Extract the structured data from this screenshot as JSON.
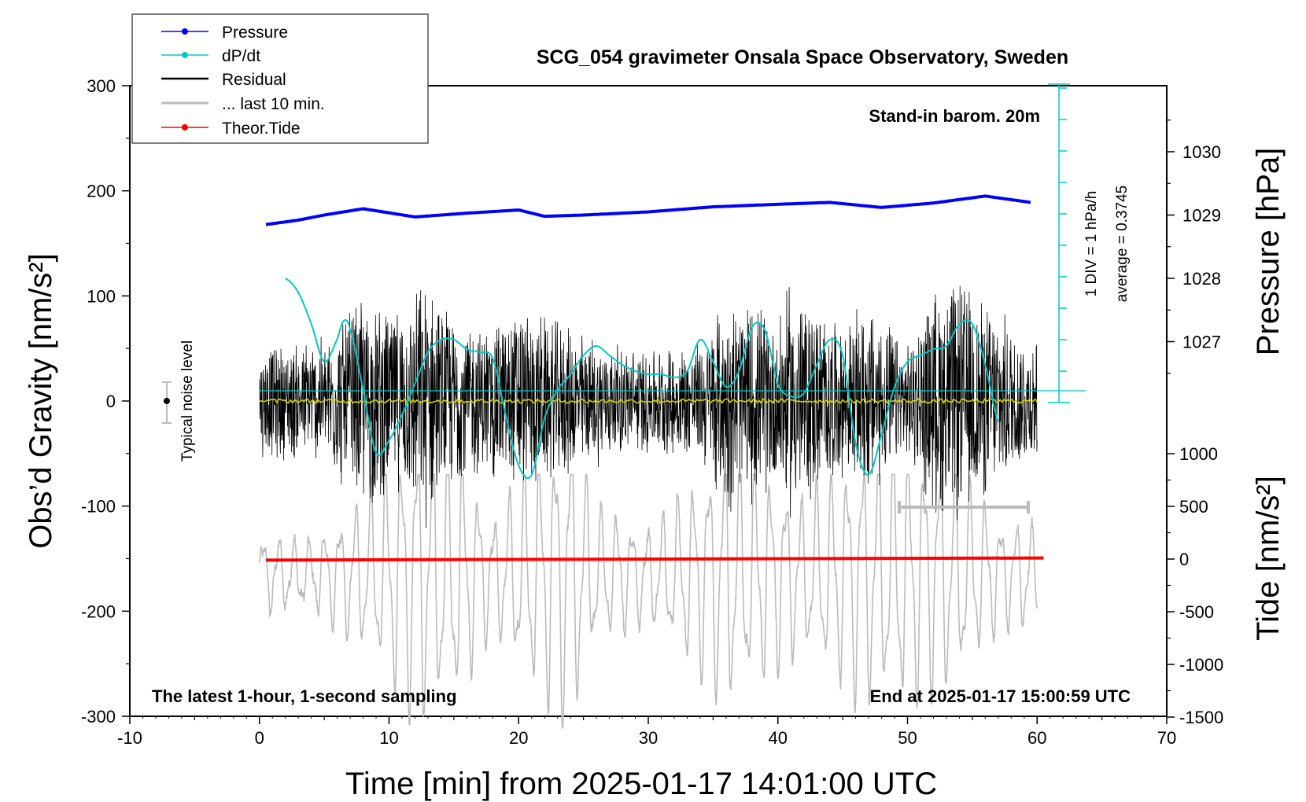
{
  "chart_data": {
    "type": "line",
    "title": "SCG_054 gravimeter Onsala Space Observatory, Sweden",
    "xlabel": "Time [min] from 2025-01-17 14:01:00 UTC",
    "ylabel_left": "Obs’d Gravity [nm/s²]",
    "ylabel_right_top": "Pressure [hPa]",
    "ylabel_right_bottom": "Tide [nm/s²]",
    "xlim": [
      -10,
      70
    ],
    "ylim_left": [
      -300,
      300
    ],
    "x_ticks": [
      "-10",
      "0",
      "10",
      "20",
      "30",
      "40",
      "50",
      "60",
      "70"
    ],
    "y_left_ticks": [
      "300",
      "200",
      "100",
      "0",
      "-100",
      "-200",
      "-300"
    ],
    "pressure_ticks": [
      "1030",
      "1029",
      "1028",
      "1027"
    ],
    "tide_ticks": [
      "1000",
      "500",
      "0",
      "-500",
      "-1000",
      "-1500"
    ],
    "legend": [
      {
        "label": "Pressure",
        "color": "#0000ff"
      },
      {
        "label": "dP/dt",
        "color": "#00c8c8"
      },
      {
        "label": "Residual",
        "color": "#000000"
      },
      {
        "label": "... last 10 min.",
        "color": "#bbbbbb"
      },
      {
        "label": "Theor.Tide",
        "color": "#ff0000"
      }
    ],
    "annotations": {
      "barometer": "Stand-in barom. 20m",
      "scale": "1 DIV = 1 hPa/h",
      "average": "average = 0.3745",
      "noise": "Typical noise level",
      "bottom_left": "The latest 1-hour, 1-second sampling",
      "bottom_right": "End at 2025-01-17 15:00:59 UTC"
    },
    "series": [
      {
        "name": "Pressure",
        "unit": "hPa",
        "x": [
          0.5,
          3,
          5,
          8,
          12,
          16,
          20,
          22,
          25,
          30,
          35,
          40,
          44,
          48,
          52,
          56,
          59.5
        ],
        "values": [
          1028.85,
          1028.92,
          1029.0,
          1029.1,
          1028.97,
          1029.03,
          1029.08,
          1028.98,
          1029.0,
          1029.05,
          1029.13,
          1029.17,
          1029.2,
          1029.12,
          1029.19,
          1029.3,
          1029.2
        ]
      },
      {
        "name": "dP/dt",
        "unit": "hPa/h",
        "reference_level": 0.3745,
        "x": [
          2.0,
          3.0,
          4.0,
          5.0,
          6.0,
          6.5,
          7.0,
          8.0,
          9.0,
          10.0,
          11.0,
          12.0,
          13.0,
          14.0,
          15.0,
          16.0,
          17.0,
          18.0,
          19.0,
          20.0,
          21.0,
          22.0,
          23.0,
          24.0,
          25.0,
          26.0,
          27.0,
          28.0,
          29.0,
          30.0,
          31.0,
          32.0,
          33.0,
          34.0,
          35.0,
          36.0,
          37.0,
          38.0,
          39.0,
          40.0,
          41.0,
          42.0,
          43.0,
          44.0,
          45.0,
          46.0,
          47.0,
          48.0,
          49.0,
          50.0,
          51.0,
          52.0,
          53.0,
          54.0,
          55.0,
          56.0,
          57.0
        ],
        "values": [
          3.95,
          3.5,
          2.5,
          1.3,
          2.0,
          2.6,
          2.3,
          0.4,
          -1.6,
          -1.2,
          -0.4,
          0.6,
          1.6,
          2.0,
          2.0,
          1.7,
          1.6,
          1.4,
          -0.4,
          -2.0,
          -2.3,
          -0.5,
          0.4,
          0.9,
          1.5,
          1.8,
          1.5,
          1.2,
          1.0,
          0.9,
          0.9,
          0.8,
          1.0,
          2.0,
          1.3,
          0.5,
          1.0,
          2.4,
          2.3,
          0.6,
          0.2,
          0.3,
          1.2,
          2.0,
          1.5,
          -1.3,
          -2.3,
          -1.0,
          0.5,
          1.3,
          1.5,
          1.7,
          1.8,
          2.5,
          2.5,
          1.2,
          -0.6
        ]
      },
      {
        "name": "Residual",
        "unit": "nm/s²",
        "x_range": [
          0,
          60
        ],
        "mean": 0,
        "envelope_amplitude": [
          50,
          150
        ]
      },
      {
        "name": "... last 10 min.",
        "unit": "nm/s²",
        "x_range": [
          0,
          60
        ],
        "envelope_amplitude": [
          40,
          150
        ]
      },
      {
        "name": "Theor.Tide",
        "unit": "nm/s²",
        "x": [
          0.5,
          60.5
        ],
        "values": [
          -10,
          10
        ]
      }
    ]
  }
}
